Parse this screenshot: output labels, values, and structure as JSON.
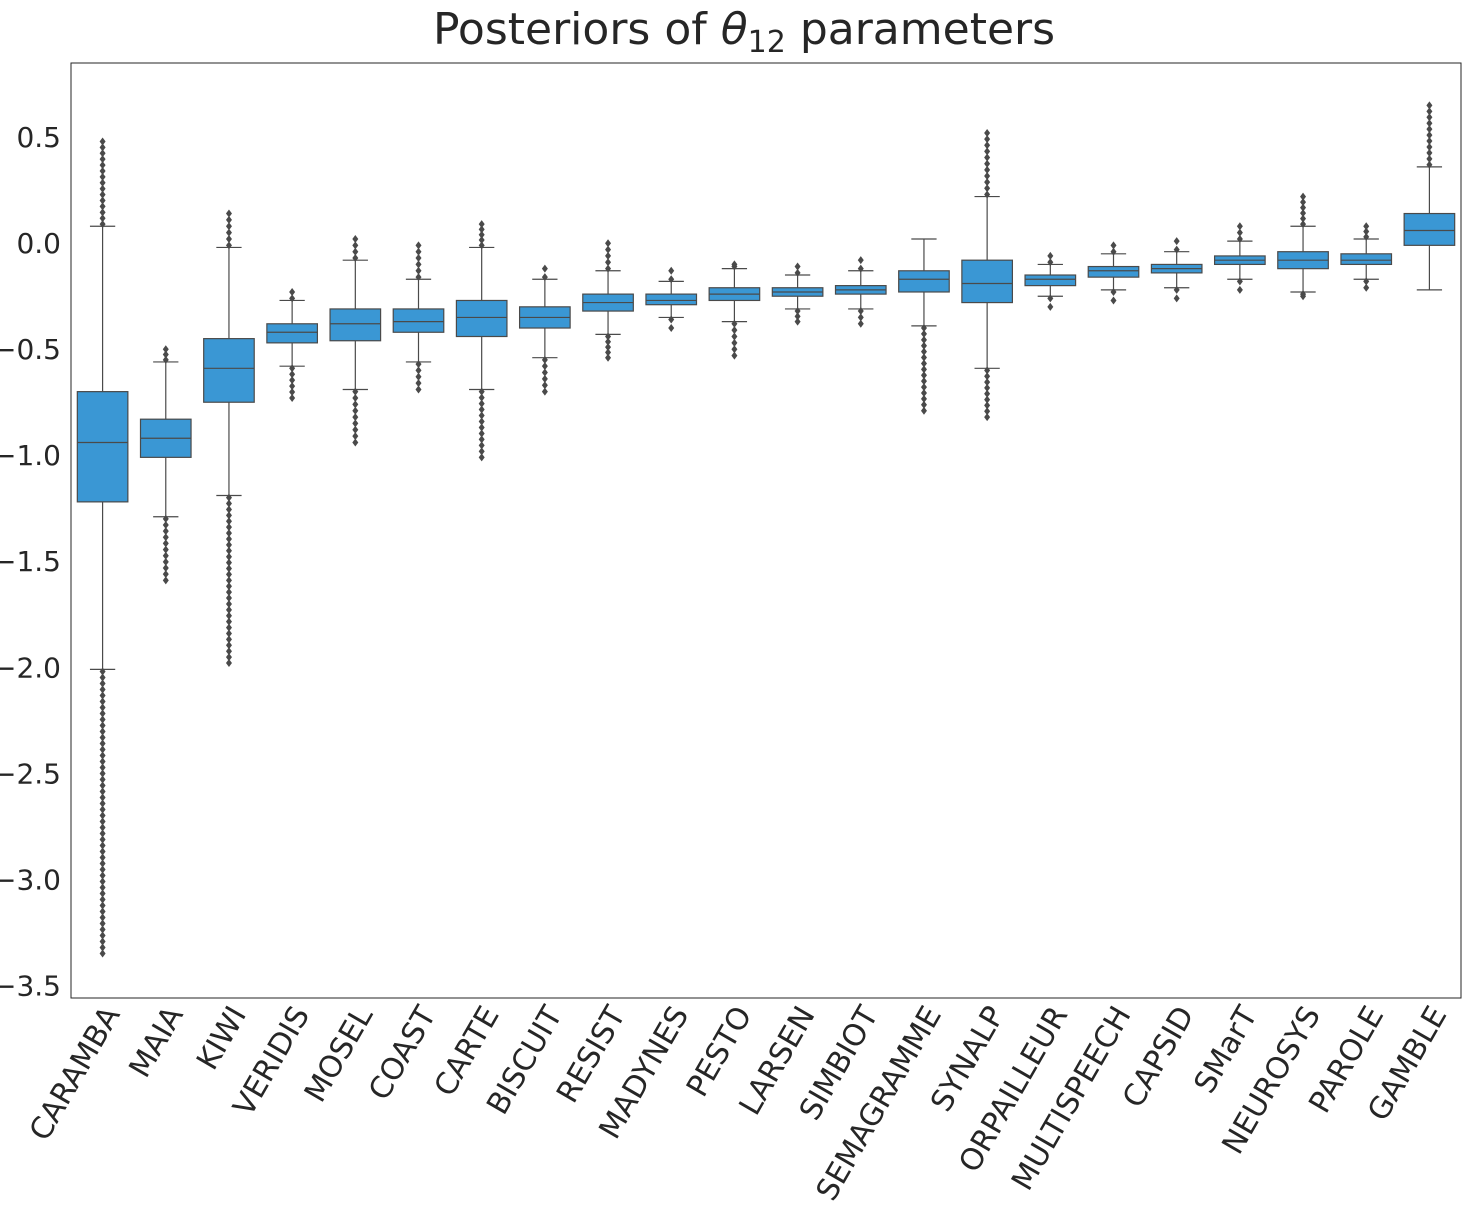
{
  "chart_data": {
    "type": "box",
    "title": "Posteriors of θ12 parameters",
    "title_main": "Posteriors of ",
    "title_symbol": "θ",
    "title_subscript": "12",
    "title_tail": " parameters",
    "xlabel": "",
    "ylabel": "",
    "ylim": [
      -3.56,
      0.85
    ],
    "yticks": [
      0.5,
      0.0,
      -0.5,
      -1.0,
      -1.5,
      -2.0,
      -2.5,
      -3.0,
      -3.5
    ],
    "ytick_labels": [
      "0.5",
      "0.0",
      "−0.5",
      "−1.0",
      "−1.5",
      "−2.0",
      "−2.5",
      "−3.0",
      "−3.5"
    ],
    "grid": false,
    "box_color": "#3a97d4",
    "line_color": "#4a4a4a",
    "categories": [
      "CARAMBA",
      "MAIA",
      "KIWI",
      "VERIDIS",
      "MOSEL",
      "COAST",
      "CARTE",
      "BISCUIT",
      "RESIST",
      "MADYNES",
      "PESTO",
      "LARSEN",
      "SIMBIOT",
      "SEMAGRAMME",
      "SYNALP",
      "ORPAILLEUR",
      "MULTISPEECH",
      "CAPSID",
      "SMarT",
      "NEUROSYS",
      "PAROLE",
      "GAMBLE"
    ],
    "boxes": [
      {
        "q1": -1.22,
        "median": -0.94,
        "q3": -0.7,
        "whisker_low": -2.01,
        "whisker_high": 0.08,
        "flier_min": -3.35,
        "flier_max": 0.48
      },
      {
        "q1": -1.01,
        "median": -0.92,
        "q3": -0.83,
        "whisker_low": -1.29,
        "whisker_high": -0.56,
        "flier_min": -1.59,
        "flier_max": -0.5
      },
      {
        "q1": -0.75,
        "median": -0.59,
        "q3": -0.45,
        "whisker_low": -1.19,
        "whisker_high": -0.02,
        "flier_min": -1.98,
        "flier_max": 0.14
      },
      {
        "q1": -0.47,
        "median": -0.42,
        "q3": -0.38,
        "whisker_low": -0.58,
        "whisker_high": -0.27,
        "flier_min": -0.73,
        "flier_max": -0.23
      },
      {
        "q1": -0.46,
        "median": -0.38,
        "q3": -0.31,
        "whisker_low": -0.69,
        "whisker_high": -0.08,
        "flier_min": -0.94,
        "flier_max": 0.02
      },
      {
        "q1": -0.42,
        "median": -0.37,
        "q3": -0.31,
        "whisker_low": -0.56,
        "whisker_high": -0.17,
        "flier_min": -0.69,
        "flier_max": -0.01
      },
      {
        "q1": -0.44,
        "median": -0.35,
        "q3": -0.27,
        "whisker_low": -0.69,
        "whisker_high": -0.02,
        "flier_min": -1.01,
        "flier_max": 0.09
      },
      {
        "q1": -0.4,
        "median": -0.35,
        "q3": -0.3,
        "whisker_low": -0.54,
        "whisker_high": -0.17,
        "flier_min": -0.7,
        "flier_max": -0.12
      },
      {
        "q1": -0.32,
        "median": -0.28,
        "q3": -0.24,
        "whisker_low": -0.43,
        "whisker_high": -0.13,
        "flier_min": -0.54,
        "flier_max": 0.0
      },
      {
        "q1": -0.29,
        "median": -0.27,
        "q3": -0.24,
        "whisker_low": -0.35,
        "whisker_high": -0.18,
        "flier_min": -0.4,
        "flier_max": -0.13
      },
      {
        "q1": -0.27,
        "median": -0.24,
        "q3": -0.21,
        "whisker_low": -0.37,
        "whisker_high": -0.12,
        "flier_min": -0.53,
        "flier_max": -0.1
      },
      {
        "q1": -0.25,
        "median": -0.23,
        "q3": -0.21,
        "whisker_low": -0.31,
        "whisker_high": -0.15,
        "flier_min": -0.37,
        "flier_max": -0.11
      },
      {
        "q1": -0.24,
        "median": -0.22,
        "q3": -0.2,
        "whisker_low": -0.31,
        "whisker_high": -0.13,
        "flier_min": -0.38,
        "flier_max": -0.08
      },
      {
        "q1": -0.23,
        "median": -0.17,
        "q3": -0.13,
        "whisker_low": -0.39,
        "whisker_high": 0.02,
        "flier_min": -0.79,
        "flier_max": 0.02
      },
      {
        "q1": -0.28,
        "median": -0.19,
        "q3": -0.08,
        "whisker_low": -0.59,
        "whisker_high": 0.22,
        "flier_min": -0.82,
        "flier_max": 0.52
      },
      {
        "q1": -0.2,
        "median": -0.17,
        "q3": -0.15,
        "whisker_low": -0.25,
        "whisker_high": -0.1,
        "flier_min": -0.3,
        "flier_max": -0.06
      },
      {
        "q1": -0.16,
        "median": -0.13,
        "q3": -0.11,
        "whisker_low": -0.22,
        "whisker_high": -0.05,
        "flier_min": -0.27,
        "flier_max": -0.01
      },
      {
        "q1": -0.14,
        "median": -0.12,
        "q3": -0.1,
        "whisker_low": -0.21,
        "whisker_high": -0.04,
        "flier_min": -0.26,
        "flier_max": 0.01
      },
      {
        "q1": -0.1,
        "median": -0.08,
        "q3": -0.06,
        "whisker_low": -0.17,
        "whisker_high": 0.01,
        "flier_min": -0.22,
        "flier_max": 0.08
      },
      {
        "q1": -0.12,
        "median": -0.08,
        "q3": -0.04,
        "whisker_low": -0.23,
        "whisker_high": 0.08,
        "flier_min": -0.25,
        "flier_max": 0.22
      },
      {
        "q1": -0.1,
        "median": -0.08,
        "q3": -0.05,
        "whisker_low": -0.17,
        "whisker_high": 0.02,
        "flier_min": -0.21,
        "flier_max": 0.08
      },
      {
        "q1": -0.01,
        "median": 0.06,
        "q3": 0.14,
        "whisker_low": -0.22,
        "whisker_high": 0.36,
        "flier_min": 0.36,
        "flier_max": 0.65
      }
    ]
  }
}
